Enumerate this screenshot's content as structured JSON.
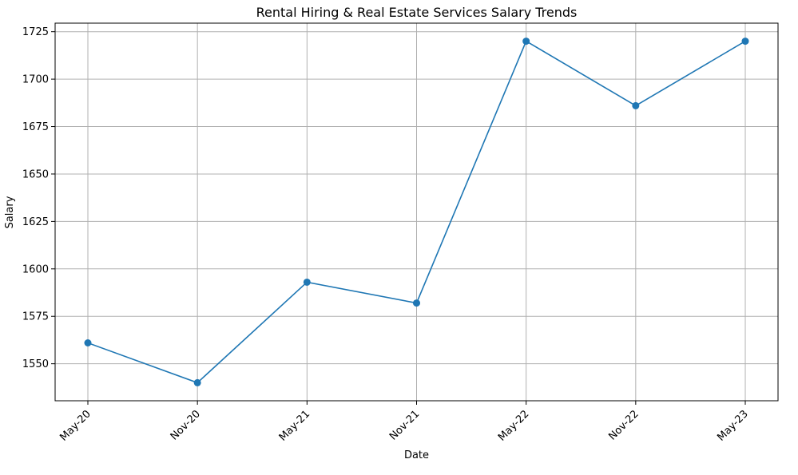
{
  "chart_data": {
    "type": "line",
    "title": "Rental Hiring & Real Estate Services Salary Trends",
    "xlabel": "Date",
    "ylabel": "Salary",
    "categories": [
      "May-20",
      "Nov-20",
      "May-21",
      "Nov-21",
      "May-22",
      "Nov-22",
      "May-23"
    ],
    "series": [
      {
        "values": [
          1561,
          1540,
          1593,
          1582,
          1720,
          1686,
          1720
        ]
      }
    ],
    "ylim": [
      1530.5,
      1729.5
    ],
    "yticks": [
      1550,
      1575,
      1600,
      1625,
      1650,
      1675,
      1700,
      1725
    ],
    "grid": true,
    "markers": true,
    "line_color": "#1f77b4"
  }
}
